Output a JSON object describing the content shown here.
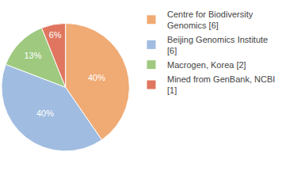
{
  "chart_data": {
    "type": "pie",
    "categories": [
      "Centre for Biodiversity Genomics [6]",
      "Beijing Genomics Institute [6]",
      "Macrogen, Korea [2]",
      "Mined from GenBank, NCBI [1]"
    ],
    "values": [
      40,
      40,
      13,
      6
    ],
    "value_labels": [
      "40%",
      "40%",
      "13%",
      "6%"
    ],
    "colors": [
      "#f0aa73",
      "#a0bce0",
      "#9ec97f",
      "#e0765f"
    ],
    "data_labels": true,
    "legend": "top-right"
  }
}
